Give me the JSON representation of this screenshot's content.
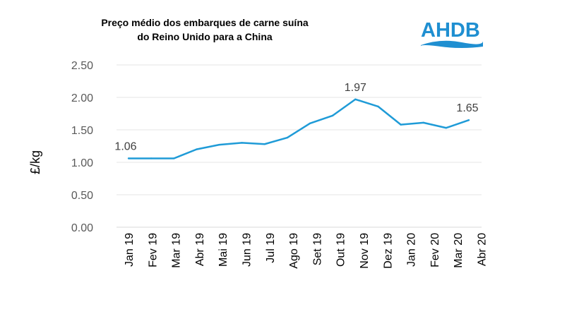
{
  "chart_data": {
    "type": "line",
    "title": [
      "Preço médio dos embarques de carne suína",
      "do Reino Unido para a China"
    ],
    "ylabel": "£/kg",
    "xlabel": "",
    "categories": [
      "Jan 19",
      "Fev 19",
      "Mar 19",
      "Abr 19",
      "Mai 19",
      "Jun 19",
      "Jul 19",
      "Ago 19",
      "Set 19",
      "Out 19",
      "Nov 19",
      "Dez 19",
      "Jan 20",
      "Fev 20",
      "Mar 20",
      "Abr 20"
    ],
    "values": [
      1.06,
      1.06,
      1.06,
      1.2,
      1.27,
      1.3,
      1.28,
      1.38,
      1.6,
      1.72,
      1.97,
      1.86,
      1.58,
      1.61,
      1.53,
      1.65
    ],
    "data_labels": [
      {
        "index": 0,
        "text": "1.06"
      },
      {
        "index": 10,
        "text": "1.97"
      },
      {
        "index": 15,
        "text": "1.65"
      }
    ],
    "yticks": [
      "0.00",
      "0.50",
      "1.00",
      "1.50",
      "2.00",
      "2.50"
    ],
    "ylim": [
      0,
      2.5
    ],
    "grid": true,
    "line_color": "#1f9bd7"
  },
  "logo": {
    "text": "AHDB",
    "color": "#1f8fd1"
  }
}
